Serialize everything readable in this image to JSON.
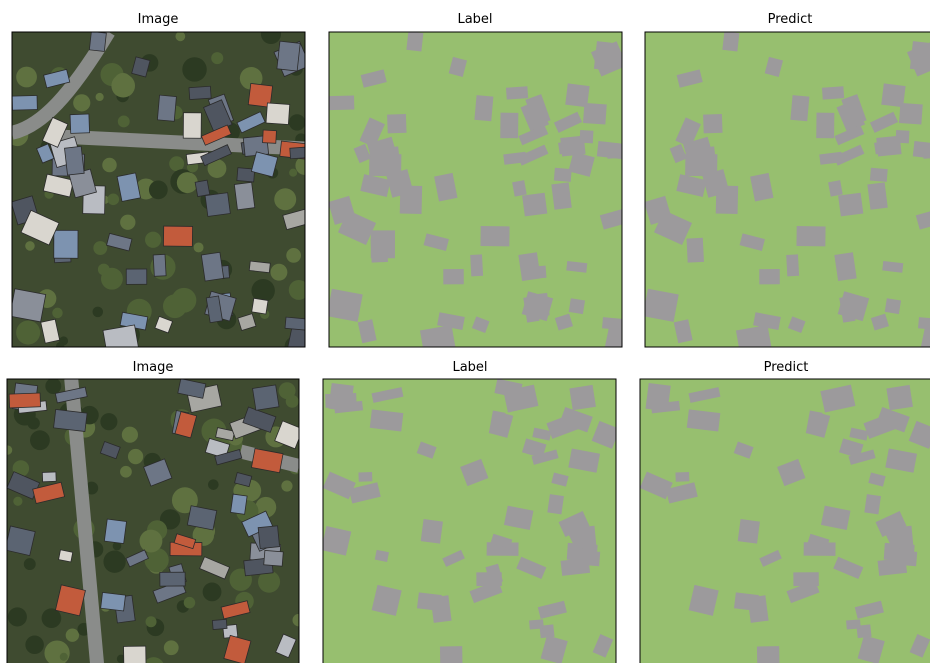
{
  "rows": [
    {
      "panels": [
        {
          "title": "Image"
        },
        {
          "title": "Label"
        },
        {
          "title": "Predict"
        }
      ]
    },
    {
      "panels": [
        {
          "title": "Image"
        },
        {
          "title": "Label"
        },
        {
          "title": "Predict"
        }
      ]
    }
  ]
}
